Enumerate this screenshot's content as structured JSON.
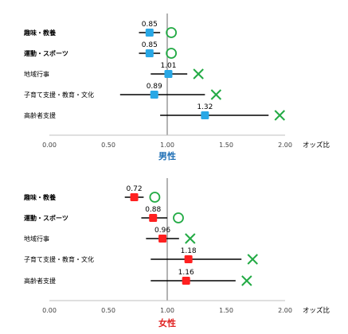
{
  "chart_data": [
    {
      "type": "forest",
      "title": "男性",
      "title_color": "#1f6fb5",
      "marker_color": "#29a8e6",
      "xlabel": "オッズ比",
      "xlim": [
        0,
        2
      ],
      "xticks": [
        "0.00",
        "0.50",
        "1.00",
        "1.50",
        "2.00"
      ],
      "reference_line": 1.0,
      "categories": [
        "趣味・教養",
        "運動・スポーツ",
        "地域行事",
        "子育て支援・教育・文化",
        "高齢者支援"
      ],
      "bold_categories": [
        true,
        true,
        false,
        false,
        false
      ],
      "values": [
        0.85,
        0.85,
        1.01,
        0.89,
        1.32
      ],
      "value_labels": [
        "0.85",
        "0.85",
        "1.01",
        "0.89",
        "1.32"
      ],
      "ci_low": [
        0.76,
        0.76,
        0.86,
        0.6,
        0.94
      ],
      "ci_high": [
        0.94,
        0.94,
        1.17,
        1.32,
        1.86
      ],
      "significance_marks": [
        "circle",
        "circle",
        "cross",
        "cross",
        "cross"
      ]
    },
    {
      "type": "forest",
      "title": "女性",
      "title_color": "#e02020",
      "marker_color": "#ff2020",
      "xlabel": "オッズ比",
      "xlim": [
        0,
        2
      ],
      "xticks": [
        "0.00",
        "0.50",
        "1.00",
        "1.50",
        "2.00"
      ],
      "reference_line": 1.0,
      "categories": [
        "趣味・教養",
        "運動・スポーツ",
        "地域行事",
        "子育て支援・教育・文化",
        "高齢者支援"
      ],
      "bold_categories": [
        true,
        true,
        false,
        false,
        false
      ],
      "values": [
        0.72,
        0.88,
        0.96,
        1.18,
        1.16
      ],
      "value_labels": [
        "0.72",
        "0.88",
        "0.96",
        "1.18",
        "1.16"
      ],
      "ci_low": [
        0.64,
        0.78,
        0.82,
        0.86,
        0.86
      ],
      "ci_high": [
        0.8,
        1.0,
        1.1,
        1.63,
        1.58
      ],
      "significance_marks": [
        "circle",
        "circle",
        "cross",
        "cross",
        "cross"
      ]
    }
  ],
  "colors": {
    "ci_line": "#000000",
    "reference_line": "#808080",
    "axis_line": "#bfbfbf",
    "sig_mark": "#22aa44"
  }
}
